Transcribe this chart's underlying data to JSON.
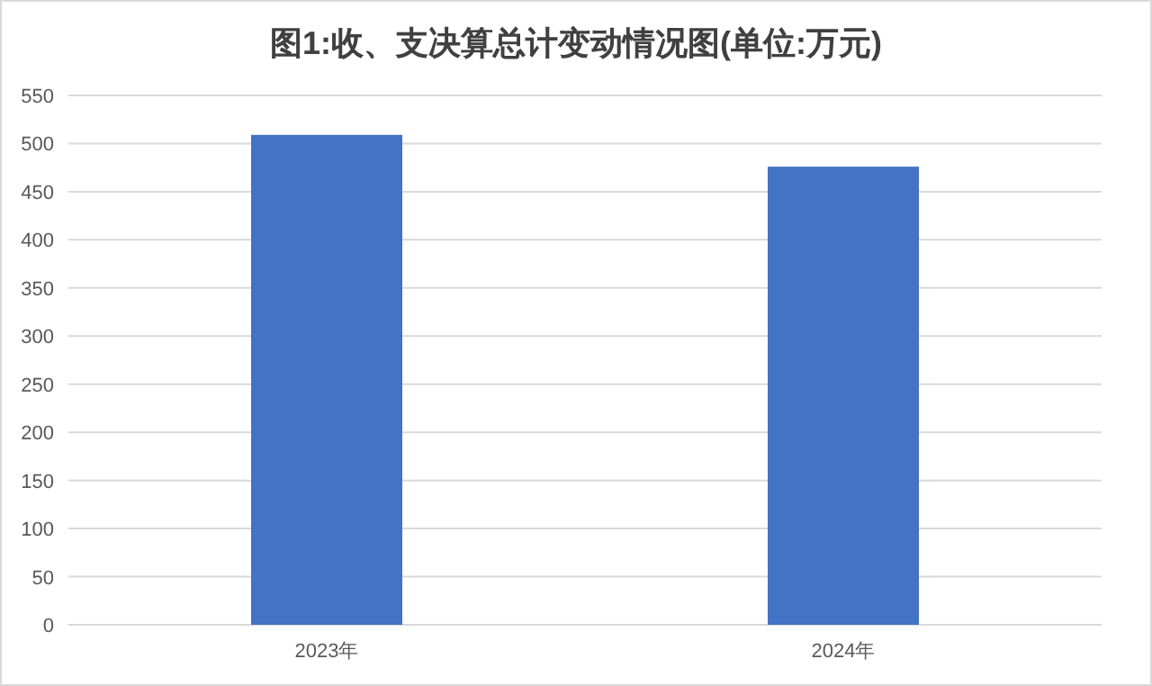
{
  "chart_data": {
    "type": "bar",
    "title": "图1:收、支决算总计变动情况图(单位:万元)",
    "categories": [
      "2023年",
      "2024年"
    ],
    "values": [
      509,
      476
    ],
    "color": "#4472c4",
    "ylim": [
      0,
      550
    ],
    "yticks": [
      0,
      50,
      100,
      150,
      200,
      250,
      300,
      350,
      400,
      450,
      500,
      550
    ],
    "grid": "y"
  }
}
